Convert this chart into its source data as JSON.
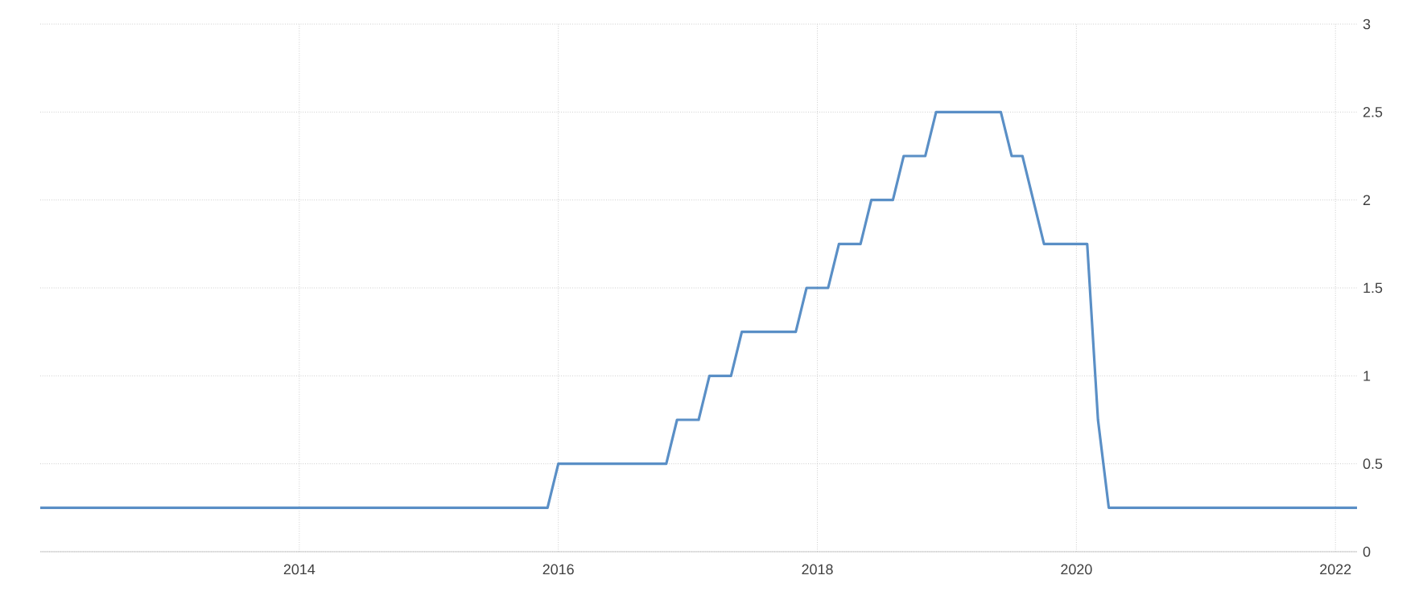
{
  "chart_data": {
    "type": "line",
    "x": [
      "2012-01",
      "2015-12",
      "2016-01",
      "2016-11",
      "2016-12",
      "2017-02",
      "2017-03",
      "2017-05",
      "2017-06",
      "2017-11",
      "2017-12",
      "2018-02",
      "2018-03",
      "2018-05",
      "2018-06",
      "2018-08",
      "2018-09",
      "2018-11",
      "2018-12",
      "2019-06",
      "2019-07",
      "2019-08",
      "2019-09",
      "2019-10",
      "2020-02",
      "2020-03",
      "2020-04",
      "2022-03"
    ],
    "series": [
      {
        "color": "#5a8fc6",
        "values": [
          0.25,
          0.25,
          0.5,
          0.5,
          0.75,
          0.75,
          1.0,
          1.0,
          1.25,
          1.25,
          1.5,
          1.5,
          1.75,
          1.75,
          2.0,
          2.0,
          2.25,
          2.25,
          2.5,
          2.5,
          2.25,
          2.25,
          2.0,
          1.75,
          1.75,
          0.75,
          0.25,
          0.25
        ]
      }
    ],
    "xlim": [
      "2012-01",
      "2022-03"
    ],
    "xticks": [
      "2014",
      "2016",
      "2018",
      "2020",
      "2022"
    ],
    "ylim": [
      0,
      3
    ],
    "yticks": [
      0,
      0.5,
      1,
      1.5,
      2,
      2.5,
      3
    ],
    "grid": true,
    "marker": "none",
    "line_style": "solid"
  }
}
